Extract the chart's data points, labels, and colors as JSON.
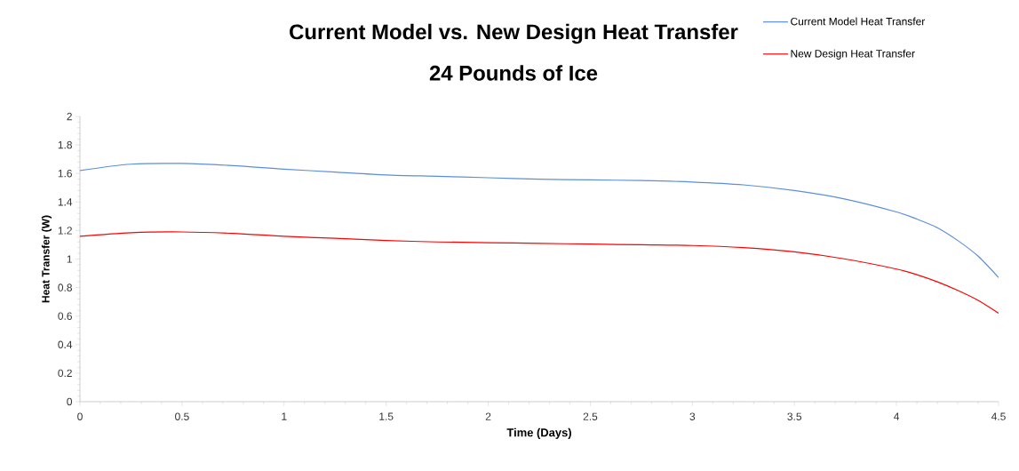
{
  "chart_data": {
    "type": "line",
    "title": "Current Model vs. New Design Heat Transfer",
    "subtitle": "24 Pounds of Ice",
    "xlabel": "Time (Days)",
    "ylabel": "Heat Transfer (W)",
    "x": [
      0,
      0.25,
      0.5,
      0.75,
      1,
      1.25,
      1.5,
      1.75,
      2,
      2.25,
      2.5,
      2.75,
      3,
      3.25,
      3.5,
      3.75,
      4,
      4.1,
      4.2,
      4.3,
      4.4,
      4.5
    ],
    "series": [
      {
        "name": "Current Model Heat Transfer",
        "color": "#5b8fdb",
        "values": [
          1.62,
          1.665,
          1.67,
          1.655,
          1.63,
          1.61,
          1.59,
          1.58,
          1.57,
          1.56,
          1.555,
          1.55,
          1.54,
          1.52,
          1.48,
          1.42,
          1.33,
          1.28,
          1.22,
          1.13,
          1.02,
          0.87
        ]
      },
      {
        "name": "New Design Heat Transfer",
        "color": "#ff0000",
        "values": [
          1.16,
          1.185,
          1.19,
          1.18,
          1.16,
          1.145,
          1.13,
          1.12,
          1.115,
          1.11,
          1.105,
          1.1,
          1.095,
          1.08,
          1.05,
          1.0,
          0.93,
          0.89,
          0.84,
          0.78,
          0.71,
          0.62
        ]
      }
    ],
    "xlim": [
      0,
      4.5
    ],
    "xticks": [
      0,
      0.5,
      1,
      1.5,
      2,
      2.5,
      3,
      3.5,
      4,
      4.5
    ],
    "ylim": [
      0,
      2
    ],
    "yticks": [
      0,
      0.2,
      0.4,
      0.6,
      0.8,
      1,
      1.2,
      1.4,
      1.6,
      1.8,
      2
    ],
    "legend": "top right",
    "grid": false,
    "marker": "none",
    "line_style": "solid"
  }
}
